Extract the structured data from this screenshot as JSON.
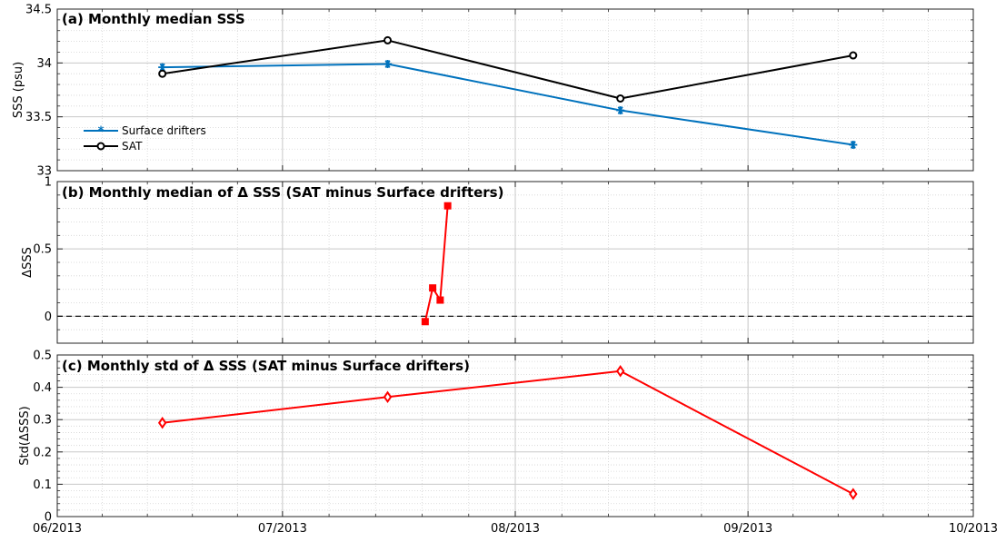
{
  "chart_data": [
    {
      "type": "line",
      "title": "(a) Monthly median SSS",
      "ylabel": "SSS (psu)",
      "xlabel": "",
      "ylim": [
        33,
        34.5
      ],
      "yticks": [
        33,
        33.5,
        34,
        34.5
      ],
      "yticklabels": [
        "33",
        "33.5",
        "34",
        "34.5"
      ],
      "grid": true,
      "legend": "left",
      "series": [
        {
          "name": "Surface drifters",
          "color": "#0072BD",
          "marker": "asterisk",
          "x": [
            "2013-06-15",
            "2013-07-15",
            "2013-08-15",
            "2013-09-15"
          ],
          "values": [
            33.96,
            33.99,
            33.56,
            33.24
          ]
        },
        {
          "name": "SAT",
          "color": "#000000",
          "marker": "circle",
          "x": [
            "2013-06-15",
            "2013-07-15",
            "2013-08-15",
            "2013-09-15"
          ],
          "values": [
            33.9,
            34.21,
            33.67,
            34.07
          ]
        }
      ]
    },
    {
      "type": "line",
      "title": "(b) Monthly median of Δ SSS (SAT minus Surface drifters)",
      "ylabel": "ΔSSS",
      "xlabel": "",
      "ylim": [
        -0.2,
        1
      ],
      "yticks": [
        0,
        0.5,
        1
      ],
      "yticklabels": [
        "0",
        "0.5",
        "1"
      ],
      "grid": true,
      "zero_line": "dashed",
      "series": [
        {
          "color": "#FF0000",
          "marker": "square",
          "x": [
            "2013-07-20",
            "2013-07-21",
            "2013-07-22",
            "2013-07-23"
          ],
          "values": [
            -0.04,
            0.21,
            0.12,
            0.82
          ]
        }
      ]
    },
    {
      "type": "line",
      "title": "(c) Monthly std of Δ SSS (SAT minus Surface drifters)",
      "ylabel": "Std(ΔSSS)",
      "xlabel": "",
      "ylim": [
        0,
        0.5
      ],
      "yticks": [
        0,
        0.1,
        0.2,
        0.3,
        0.4,
        0.5
      ],
      "yticklabels": [
        "0",
        "0.1",
        "0.2",
        "0.3",
        "0.4",
        "0.5"
      ],
      "grid": true,
      "series": [
        {
          "color": "#FF0000",
          "marker": "diamond",
          "x": [
            "2013-06-15",
            "2013-07-15",
            "2013-08-15",
            "2013-09-15"
          ],
          "values": [
            0.29,
            0.37,
            0.45,
            0.07
          ]
        }
      ]
    }
  ],
  "x_axis": {
    "range": [
      "2013-06-01",
      "2013-10-01"
    ],
    "ticks": [
      "2013-06-01",
      "2013-07-01",
      "2013-08-01",
      "2013-09-01",
      "2013-10-01"
    ],
    "ticklabels": [
      "06/2013",
      "07/2013",
      "08/2013",
      "09/2013",
      "10/2013"
    ]
  }
}
